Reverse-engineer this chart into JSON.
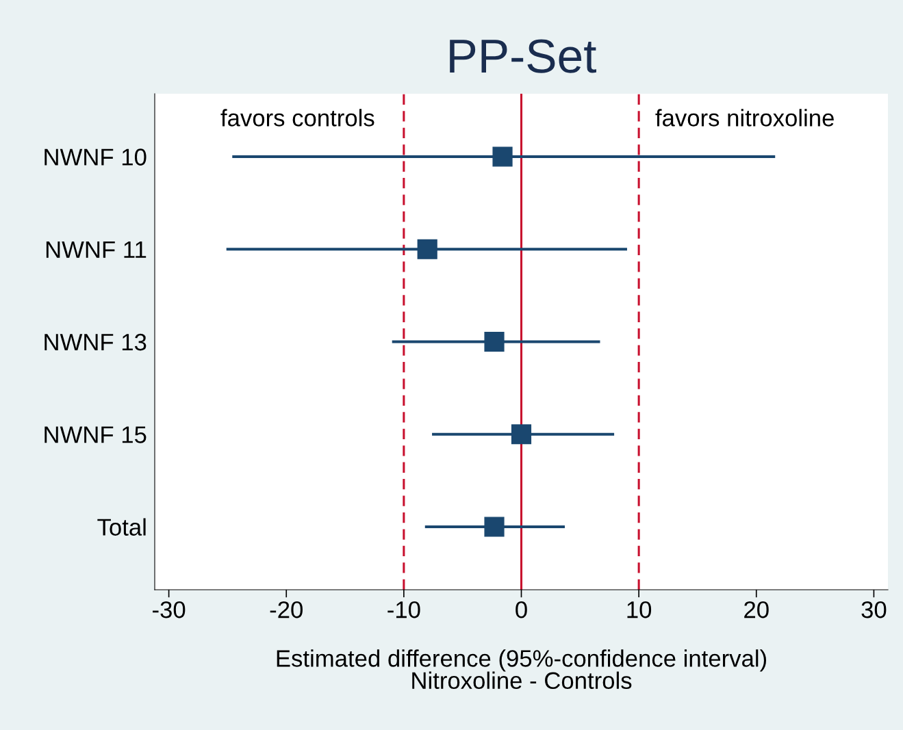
{
  "chart_data": {
    "type": "scatter",
    "title": "PP-Set",
    "xlabel": "Estimated difference (95%-confidence interval)\nNitroxoline - Controls",
    "categories": [
      "NWNF 10",
      "NWNF 11",
      "NWNF 13",
      "NWNF 15",
      "Total"
    ],
    "series": [
      {
        "color": "#1a476f",
        "values": [
          -1.6,
          -8.0,
          -2.3,
          0.0,
          -2.3
        ],
        "errors": [
          [
            -24.6,
            21.6
          ],
          [
            -25.1,
            9.0
          ],
          [
            -11.0,
            6.7
          ],
          [
            -7.6,
            7.9
          ],
          [
            -8.2,
            3.7
          ]
        ]
      }
    ],
    "orientation": "horizontal",
    "marker": "square",
    "xlim": [
      -31.2,
      31.2
    ],
    "xticks": [
      -30,
      -20,
      -10,
      0,
      10,
      20,
      30
    ],
    "ref_lines": [
      {
        "axis": "x",
        "value": -10,
        "color": "#c8102e",
        "line_style": "dashed"
      },
      {
        "axis": "x",
        "value": 0,
        "color": "#c8102e",
        "line_style": "solid"
      },
      {
        "axis": "x",
        "value": 10,
        "color": "#c8102e",
        "line_style": "dashed"
      }
    ],
    "annotations": [
      "favors controls",
      "favors nitroxoline"
    ],
    "grid": false,
    "legend": false
  }
}
